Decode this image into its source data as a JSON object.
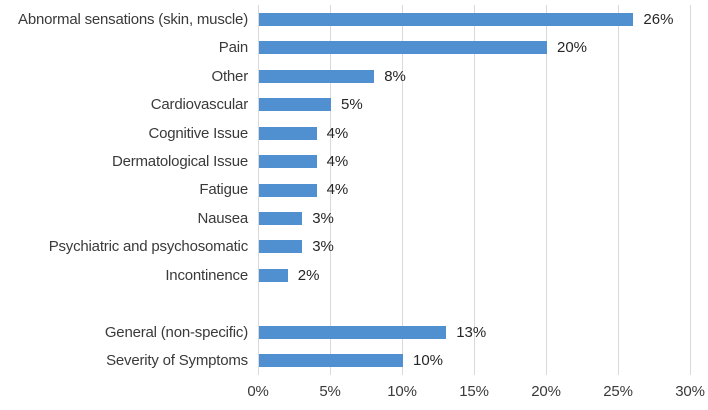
{
  "chart_data": {
    "type": "bar",
    "orientation": "horizontal",
    "title": "",
    "xlabel": "",
    "ylabel": "",
    "xlim": [
      0,
      30
    ],
    "x_ticks": [
      "0%",
      "5%",
      "10%",
      "15%",
      "20%",
      "25%",
      "30%"
    ],
    "grid": "vertical-only",
    "legend": "none",
    "groups": [
      {
        "name": "symptom-categories",
        "categories": [
          "Abnormal sensations (skin, muscle)",
          "Pain",
          "Other",
          "Cardiovascular",
          "Cognitive Issue",
          "Dermatological Issue",
          "Fatigue",
          "Nausea",
          "Psychiatric and psychosomatic",
          "Incontinence"
        ],
        "values": [
          26,
          20,
          8,
          5,
          4,
          4,
          4,
          3,
          3,
          2
        ],
        "value_labels": [
          "26%",
          "20%",
          "8%",
          "5%",
          "4%",
          "4%",
          "4%",
          "3%",
          "3%",
          "2%"
        ]
      },
      {
        "name": "summary-categories",
        "categories": [
          "General (non-specific)",
          "Severity of Symptoms"
        ],
        "values": [
          13,
          10
        ],
        "value_labels": [
          "13%",
          "10%"
        ]
      }
    ],
    "colors": {
      "bar": "#5090d0",
      "gridline": "#d9d9d9",
      "category_text": "#3a3a3a",
      "value_text": "#262626",
      "background": "#ffffff"
    }
  }
}
